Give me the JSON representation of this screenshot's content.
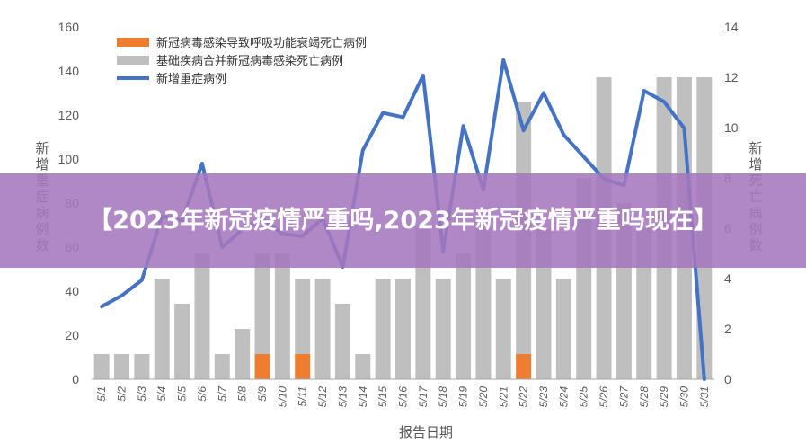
{
  "banner": {
    "title": "【2023年新冠疫情严重吗,2023年新冠疫情严重吗现在】"
  },
  "chart_data": {
    "type": "bar",
    "categories": [
      "5/1",
      "5/2",
      "5/3",
      "5/4",
      "5/5",
      "5/6",
      "5/7",
      "5/8",
      "5/9",
      "5/10",
      "5/11",
      "5/12",
      "5/13",
      "5/14",
      "5/15",
      "5/16",
      "5/17",
      "5/18",
      "5/19",
      "5/20",
      "5/21",
      "5/22",
      "5/23",
      "5/24",
      "5/25",
      "5/26",
      "5/27",
      "5/28",
      "5/29",
      "5/30",
      "5/31"
    ],
    "xlabel": "报告日期",
    "ylabel_left": "新增重症病例数",
    "ylabel_right": "新增死亡病例数",
    "ylim_left": [
      0,
      160
    ],
    "yticks_left": [
      0,
      20,
      40,
      60,
      80,
      100,
      120,
      140,
      160
    ],
    "ylim_right": [
      0,
      14
    ],
    "yticks_right": [
      0,
      2,
      4,
      6,
      8,
      10,
      12,
      14
    ],
    "legend_position": "top-left",
    "grid": false,
    "series": [
      {
        "name": "新冠病毒感染导致呼吸功能衰竭死亡病例",
        "kind": "bar",
        "axis": "right",
        "color": "#ED7D31",
        "values": [
          0,
          0,
          0,
          0,
          0,
          0,
          0,
          0,
          1,
          0,
          1,
          0,
          0,
          0,
          0,
          0,
          0,
          0,
          0,
          0,
          0,
          1,
          0,
          0,
          0,
          0,
          0,
          0,
          0,
          0,
          0
        ]
      },
      {
        "name": "基础疾病合并新冠病毒感染死亡病例",
        "kind": "bar",
        "axis": "right",
        "color": "#BFBFBF",
        "values": [
          1,
          1,
          1,
          4,
          3,
          5,
          1,
          2,
          4,
          5,
          3,
          4,
          3,
          1,
          4,
          4,
          6,
          4,
          5,
          6,
          4,
          10,
          6,
          4,
          8,
          12,
          7,
          6,
          12,
          12,
          12
        ]
      },
      {
        "name": "新增重症病例",
        "kind": "line",
        "axis": "left",
        "color": "#4472C4",
        "values": [
          33,
          38,
          45,
          74,
          72,
          98,
          60,
          68,
          73,
          66,
          65,
          73,
          51,
          104,
          121,
          119,
          138,
          58,
          115,
          86,
          145,
          113,
          130,
          111,
          101,
          91,
          88,
          131,
          126,
          114,
          0
        ]
      }
    ]
  }
}
